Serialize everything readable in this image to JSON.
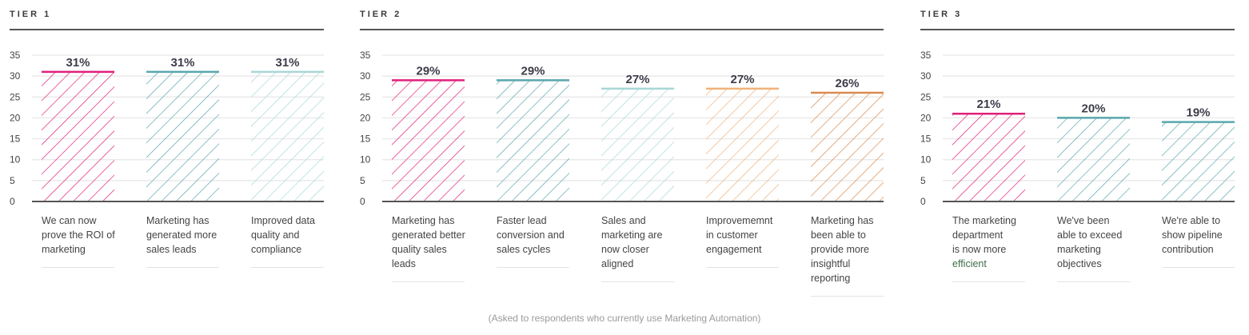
{
  "footnote": "(Asked to respondents who currently use Marketing Automation)",
  "chart_data": [
    {
      "type": "bar",
      "title": "TIER 1",
      "ylim": [
        0,
        35
      ],
      "yticks": [
        0,
        5,
        10,
        15,
        20,
        25,
        30,
        35
      ],
      "grid": true,
      "categories": [
        "We can now prove the ROI of marketing",
        "Marketing has generated more sales leads",
        "Improved data quality and compliance"
      ],
      "category_lines": [
        [
          "We can now",
          "prove the ROI of",
          "marketing"
        ],
        [
          "Marketing has",
          "generated more",
          "sales leads"
        ],
        [
          "Improved data",
          "quality and",
          "compliance"
        ]
      ],
      "values": [
        31,
        31,
        31
      ],
      "data_labels": [
        "31%",
        "31%",
        "31%"
      ],
      "colors": [
        "#e0207a",
        "#5aa6ad",
        "#a9d6d8"
      ]
    },
    {
      "type": "bar",
      "title": "TIER 2",
      "ylim": [
        0,
        35
      ],
      "yticks": [
        0,
        5,
        10,
        15,
        20,
        25,
        30,
        35
      ],
      "grid": true,
      "categories": [
        "Marketing has generated better quality sales leads",
        "Faster lead conversion and sales cycles",
        "Sales and marketing are now closer aligned",
        "Improvememnt in customer engagement",
        "Marketing has been able to provide more insightful reporting"
      ],
      "category_lines": [
        [
          "Marketing has",
          "generated better",
          "quality sales",
          "leads"
        ],
        [
          "Faster lead",
          "conversion and",
          "sales cycles"
        ],
        [
          "Sales and",
          "marketing are",
          "now closer",
          "aligned"
        ],
        [
          "Improvememnt",
          "in customer",
          "engagement"
        ],
        [
          "Marketing has",
          "been able to",
          "provide more",
          "insightful",
          "reporting"
        ]
      ],
      "values": [
        29,
        29,
        27,
        27,
        26
      ],
      "data_labels": [
        "29%",
        "29%",
        "27%",
        "27%",
        "26%"
      ],
      "colors": [
        "#e0207a",
        "#5aa6ad",
        "#a9d6d8",
        "#f0b27a",
        "#d98b50"
      ]
    },
    {
      "type": "bar",
      "title": "TIER 3",
      "ylim": [
        0,
        35
      ],
      "yticks": [
        0,
        5,
        10,
        15,
        20,
        25,
        30,
        35
      ],
      "grid": true,
      "categories": [
        "The marketing department is now more efficient",
        "We've been able to exceed marketing objectives",
        "We're able to show pipeline contribution"
      ],
      "category_lines": [
        [
          "The marketing",
          "department",
          "is now more",
          "efficient"
        ],
        [
          "We've been",
          "able to exceed",
          "marketing",
          "objectives"
        ],
        [
          "We're able to",
          "show pipeline",
          "contribution"
        ]
      ],
      "values": [
        21,
        20,
        19
      ],
      "data_labels": [
        "21%",
        "20%",
        "19%"
      ],
      "colors": [
        "#e0207a",
        "#5aa6ad",
        "#5aa6ad"
      ]
    }
  ]
}
